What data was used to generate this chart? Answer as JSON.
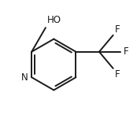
{
  "bg_color": "#ffffff",
  "line_color": "#1a1a1a",
  "text_color": "#1a1a1a",
  "line_width": 1.4,
  "font_size": 8.5,
  "figsize": [
    1.74,
    1.6
  ],
  "dpi": 100,
  "N_label": "N",
  "HO_label": "HO",
  "F_label": "F"
}
